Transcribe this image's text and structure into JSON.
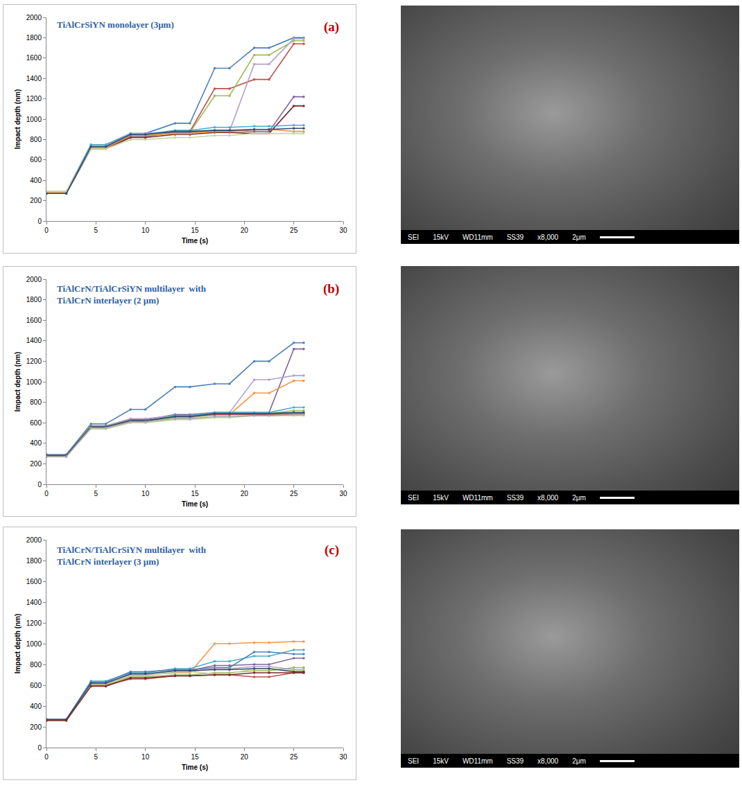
{
  "chart_data": [
    {
      "type": "line",
      "panel": "(a)",
      "title": [
        "TiAlCrSiYN monolayer (3µm)"
      ],
      "x_label": "Time (s)",
      "y_label": "Impact depth (nm)",
      "x": [
        0,
        2,
        4.5,
        6,
        8.5,
        10,
        13,
        14.5,
        17,
        18.5,
        21,
        22.5,
        25,
        26
      ],
      "xlim": [
        0,
        30
      ],
      "xticks": [
        0,
        5,
        10,
        15,
        20,
        25,
        30
      ],
      "ylim": [
        0,
        2000
      ],
      "yticks": [
        0,
        200,
        400,
        600,
        800,
        1000,
        1200,
        1400,
        1600,
        1800,
        2000
      ],
      "grid": false,
      "marker": "circle",
      "line_style": "solid",
      "series": [
        {
          "color": "#4f81bd",
          "values": [
            280,
            280,
            750,
            750,
            860,
            860,
            960,
            960,
            1500,
            1500,
            1700,
            1700,
            1800,
            1800
          ]
        },
        {
          "color": "#c0504d",
          "values": [
            280,
            280,
            730,
            730,
            850,
            850,
            880,
            880,
            1300,
            1300,
            1390,
            1390,
            1740,
            1740
          ]
        },
        {
          "color": "#9bbb59",
          "values": [
            280,
            280,
            720,
            720,
            840,
            840,
            870,
            870,
            1230,
            1230,
            1630,
            1630,
            1770,
            1770
          ]
        },
        {
          "color": "#b3a2c7",
          "values": [
            290,
            290,
            740,
            740,
            860,
            860,
            880,
            880,
            880,
            880,
            1540,
            1540,
            1790,
            1790
          ]
        },
        {
          "color": "#8064a2",
          "values": [
            280,
            280,
            720,
            720,
            830,
            830,
            870,
            870,
            890,
            890,
            880,
            880,
            1220,
            1220
          ]
        },
        {
          "color": "#772c2a",
          "values": [
            270,
            270,
            710,
            710,
            820,
            820,
            850,
            850,
            870,
            870,
            860,
            860,
            1130,
            1130
          ]
        },
        {
          "color": "#4bacc6",
          "values": [
            280,
            280,
            750,
            750,
            850,
            850,
            890,
            890,
            920,
            920,
            930,
            930,
            940,
            940
          ]
        },
        {
          "color": "#f79646",
          "values": [
            280,
            280,
            720,
            720,
            840,
            840,
            860,
            860,
            880,
            880,
            900,
            900,
            880,
            880
          ]
        },
        {
          "color": "#c3d69b",
          "values": [
            290,
            290,
            710,
            710,
            800,
            800,
            820,
            820,
            840,
            840,
            860,
            860,
            860,
            860
          ]
        },
        {
          "color": "#2c4d75",
          "values": [
            270,
            270,
            730,
            730,
            850,
            850,
            880,
            880,
            890,
            890,
            900,
            900,
            910,
            910
          ]
        }
      ]
    },
    {
      "type": "line",
      "panel": "(b)",
      "title": [
        "TiAlCrN/TiAlCrSiYN multilayer  with",
        "TiAlCrN interlayer (2 μm)"
      ],
      "x_label": "Time (s)",
      "y_label": "Impact depth (nm)",
      "x": [
        0,
        2,
        4.5,
        6,
        8.5,
        10,
        13,
        14.5,
        17,
        18.5,
        21,
        22.5,
        25,
        26
      ],
      "xlim": [
        0,
        30
      ],
      "xticks": [
        0,
        5,
        10,
        15,
        20,
        25,
        30
      ],
      "ylim": [
        0,
        2000
      ],
      "yticks": [
        0,
        200,
        400,
        600,
        800,
        1000,
        1200,
        1400,
        1600,
        1800,
        2000
      ],
      "grid": false,
      "marker": "circle",
      "line_style": "solid",
      "series": [
        {
          "color": "#4f81bd",
          "values": [
            290,
            290,
            590,
            590,
            730,
            730,
            950,
            950,
            980,
            980,
            1200,
            1200,
            1380,
            1380
          ]
        },
        {
          "color": "#8064a2",
          "values": [
            280,
            280,
            570,
            570,
            630,
            630,
            680,
            680,
            700,
            700,
            700,
            700,
            1320,
            1320
          ]
        },
        {
          "color": "#b3a2c7",
          "values": [
            280,
            280,
            570,
            570,
            640,
            640,
            670,
            670,
            700,
            700,
            1020,
            1020,
            1060,
            1060
          ]
        },
        {
          "color": "#f79646",
          "values": [
            270,
            270,
            560,
            560,
            620,
            620,
            660,
            660,
            680,
            680,
            890,
            890,
            1010,
            1010
          ]
        },
        {
          "color": "#4bacc6",
          "values": [
            280,
            280,
            560,
            560,
            620,
            620,
            670,
            670,
            700,
            700,
            700,
            700,
            750,
            750
          ]
        },
        {
          "color": "#9bbb59",
          "values": [
            270,
            270,
            570,
            570,
            610,
            610,
            650,
            650,
            680,
            680,
            690,
            690,
            720,
            720
          ]
        },
        {
          "color": "#c0504d",
          "values": [
            280,
            280,
            560,
            560,
            620,
            620,
            660,
            660,
            680,
            680,
            680,
            680,
            690,
            690
          ]
        },
        {
          "color": "#c3d69b",
          "values": [
            270,
            270,
            540,
            540,
            600,
            600,
            630,
            630,
            650,
            650,
            670,
            670,
            670,
            670
          ]
        },
        {
          "color": "#2c4d75",
          "values": [
            280,
            280,
            560,
            560,
            620,
            620,
            660,
            660,
            690,
            690,
            690,
            690,
            700,
            700
          ]
        },
        {
          "color": "#a5a5a5",
          "values": [
            270,
            270,
            550,
            550,
            610,
            610,
            640,
            640,
            660,
            660,
            670,
            670,
            680,
            680
          ]
        }
      ]
    },
    {
      "type": "line",
      "panel": "(c)",
      "title": [
        "TiAlCrN/TiAlCrSiYN multilayer  with",
        "TiAlCrN interlayer (3 μm)"
      ],
      "x_label": "Time (s)",
      "y_label": "Impact depth (nm)",
      "x": [
        0,
        2,
        4.5,
        6,
        8.5,
        10,
        13,
        14.5,
        17,
        18.5,
        21,
        22.5,
        25,
        26
      ],
      "xlim": [
        0,
        30
      ],
      "xticks": [
        0,
        5,
        10,
        15,
        20,
        25,
        30
      ],
      "ylim": [
        0,
        2000
      ],
      "yticks": [
        0,
        200,
        400,
        600,
        800,
        1000,
        1200,
        1400,
        1600,
        1800,
        2000
      ],
      "grid": false,
      "marker": "circle",
      "line_style": "solid",
      "series": [
        {
          "color": "#f79646",
          "values": [
            270,
            270,
            620,
            620,
            700,
            700,
            720,
            720,
            1000,
            1000,
            1010,
            1010,
            1020,
            1020
          ]
        },
        {
          "color": "#4bacc6",
          "values": [
            270,
            270,
            640,
            640,
            720,
            720,
            760,
            760,
            830,
            830,
            880,
            880,
            940,
            940
          ]
        },
        {
          "color": "#4f81bd",
          "values": [
            270,
            270,
            630,
            630,
            730,
            730,
            750,
            750,
            770,
            770,
            920,
            920,
            900,
            900
          ]
        },
        {
          "color": "#8064a2",
          "values": [
            270,
            270,
            610,
            610,
            690,
            690,
            740,
            740,
            790,
            790,
            800,
            800,
            860,
            860
          ]
        },
        {
          "color": "#9bbb59",
          "values": [
            260,
            260,
            600,
            600,
            680,
            680,
            700,
            700,
            720,
            720,
            740,
            740,
            770,
            770
          ]
        },
        {
          "color": "#c0504d",
          "values": [
            270,
            270,
            600,
            600,
            660,
            660,
            690,
            690,
            700,
            700,
            680,
            680,
            720,
            720
          ]
        },
        {
          "color": "#b3a2c7",
          "values": [
            270,
            270,
            620,
            620,
            700,
            700,
            730,
            730,
            760,
            760,
            780,
            780,
            750,
            750
          ]
        },
        {
          "color": "#c3d69b",
          "values": [
            260,
            260,
            610,
            610,
            690,
            690,
            730,
            730,
            710,
            710,
            760,
            760,
            740,
            740
          ]
        },
        {
          "color": "#2c4d75",
          "values": [
            270,
            270,
            620,
            620,
            710,
            710,
            740,
            740,
            750,
            750,
            760,
            760,
            730,
            730
          ]
        },
        {
          "color": "#772c2a",
          "values": [
            260,
            260,
            590,
            590,
            670,
            670,
            690,
            690,
            700,
            700,
            720,
            720,
            720,
            720
          ]
        }
      ]
    }
  ],
  "sem_images": [
    {
      "info": [
        "SEI",
        "15kV",
        "WD11mm",
        "SS39",
        "x8,000",
        "2μm"
      ]
    },
    {
      "info": [
        "SEI",
        "15kV",
        "WD11mm",
        "SS39",
        "x8,000",
        "2μm"
      ]
    },
    {
      "info": [
        "SEI",
        "15kV",
        "WD11mm",
        "SS39",
        "x8,000",
        "2μm"
      ]
    }
  ]
}
